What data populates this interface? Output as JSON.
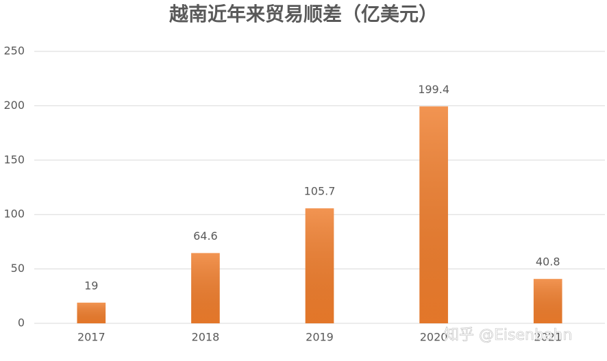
{
  "chart_data": {
    "type": "bar",
    "title": "越南近年来贸易顺差（亿美元）",
    "categories": [
      "2017",
      "2018",
      "2019",
      "2020",
      "2021"
    ],
    "values": [
      19,
      64.6,
      105.7,
      199.4,
      40.8
    ],
    "color": "#ef7d2c",
    "ylim": [
      0,
      250
    ],
    "yticks": [
      0,
      50,
      100,
      150,
      200,
      250
    ],
    "grid": true,
    "watermark": "知乎 @Eisenbahn"
  }
}
